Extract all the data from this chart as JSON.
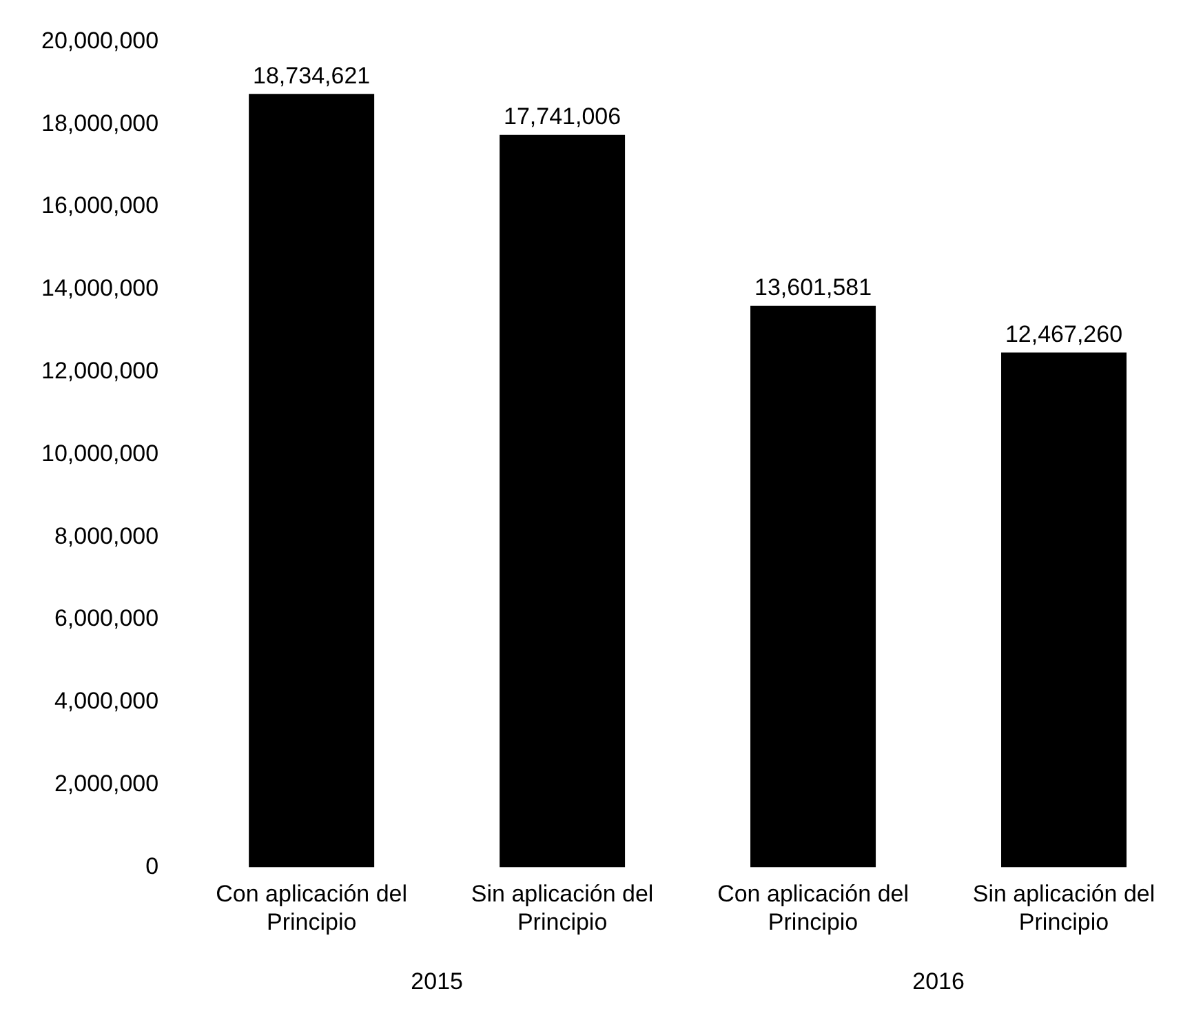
{
  "chart_data": {
    "type": "bar",
    "categories": [
      "Con aplicación del Principio",
      "Sin aplicación del Principio",
      "Con aplicación del Principio",
      "Sin aplicación del Principio"
    ],
    "values": [
      18734621,
      17741006,
      13601581,
      12467260
    ],
    "value_labels": [
      "18,734,621",
      "17,741,006",
      "13,601,581",
      "12,467,260"
    ],
    "color": "#000000",
    "ylim": [
      0,
      20000000
    ],
    "yticks": [
      0,
      {
        "value": 2000000,
        "label": "2,000,000"
      },
      {
        "value": 4000000,
        "label": "4,000,000"
      },
      {
        "value": 6000000,
        "label": "6,000,000"
      },
      {
        "value": 8000000,
        "label": "8,000,000"
      },
      {
        "value": 10000000,
        "label": "10,000,000"
      },
      {
        "value": 12000000,
        "label": "12,000,000"
      },
      {
        "value": 14000000,
        "label": "14,000,000"
      },
      {
        "value": 16000000,
        "label": "16,000,000"
      },
      {
        "value": 18000000,
        "label": "18,000,000"
      },
      {
        "value": 20000000,
        "label": "20,000,000"
      }
    ],
    "annotations": [
      "2015",
      "2016"
    ]
  }
}
